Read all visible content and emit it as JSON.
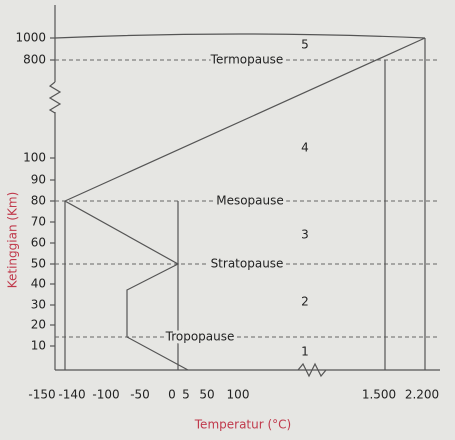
{
  "axis": {
    "y_title": "Ketinggian (Km)",
    "x_title": "Temperatur (°C)",
    "y_ticks": [
      "1000",
      "800",
      "100",
      "90",
      "80",
      "70",
      "60",
      "50",
      "40",
      "30",
      "20",
      "10"
    ],
    "x_ticks": [
      "-150",
      "-140",
      "-100",
      "-50",
      "0",
      "5",
      "50",
      "100",
      "1.500",
      "2.200"
    ]
  },
  "layers": [
    {
      "number": "1",
      "boundary": "Tropopause"
    },
    {
      "number": "2",
      "boundary": "Stratopause"
    },
    {
      "number": "3",
      "boundary": "Mesopause"
    },
    {
      "number": "4",
      "boundary": "Termopause"
    },
    {
      "number": "5"
    }
  ]
}
